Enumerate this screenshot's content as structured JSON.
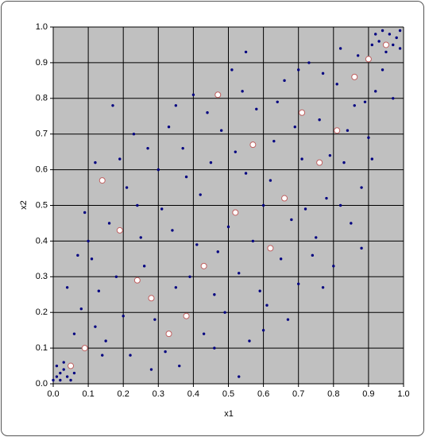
{
  "chart_data": {
    "type": "scatter",
    "xlabel": "x1",
    "ylabel": "x2",
    "xlim": [
      0,
      1
    ],
    "ylim": [
      0,
      1
    ],
    "xticks": [
      {
        "value": 0,
        "label": "0.0"
      },
      {
        "value": 0.1,
        "label": "0.1"
      },
      {
        "value": 0.2,
        "label": "0.2"
      },
      {
        "value": 0.3,
        "label": "0.3"
      },
      {
        "value": 0.4,
        "label": "0.4"
      },
      {
        "value": 0.5,
        "label": "0.5"
      },
      {
        "value": 0.6,
        "label": "0.6"
      },
      {
        "value": 0.7,
        "label": "0.7"
      },
      {
        "value": 0.8,
        "label": "0.8"
      },
      {
        "value": 0.9,
        "label": "0.9"
      },
      {
        "value": 1,
        "label": "1.0"
      }
    ],
    "yticks": [
      {
        "value": 0,
        "label": "0.0"
      },
      {
        "value": 0.1,
        "label": "0.1"
      },
      {
        "value": 0.2,
        "label": "0.2"
      },
      {
        "value": 0.3,
        "label": "0.3"
      },
      {
        "value": 0.4,
        "label": "0.4"
      },
      {
        "value": 0.5,
        "label": "0.5"
      },
      {
        "value": 0.6,
        "label": "0.6"
      },
      {
        "value": 0.7,
        "label": "0.7"
      },
      {
        "value": 0.8,
        "label": "0.8"
      },
      {
        "value": 0.9,
        "label": "0.9"
      },
      {
        "value": 1,
        "label": "1.0"
      }
    ],
    "grid": true,
    "plot_background": "#c0c0c0",
    "series": [
      {
        "color": "#000080",
        "marker": "dot",
        "x": [
          0.01,
          0.02,
          0.03,
          0.01,
          0.04,
          0.02,
          0.05,
          0.03,
          0.06,
          0.0,
          0.96,
          0.98,
          0.93,
          0.99,
          0.95,
          0.97,
          0.92,
          0.99,
          0.94,
          0.91,
          0.08,
          0.11,
          0.12,
          0.09,
          0.15,
          0.17,
          0.18,
          0.21,
          0.22,
          0.25,
          0.27,
          0.29,
          0.31,
          0.33,
          0.35,
          0.36,
          0.38,
          0.4,
          0.41,
          0.43,
          0.45,
          0.46,
          0.48,
          0.5,
          0.51,
          0.53,
          0.55,
          0.56,
          0.58,
          0.6,
          0.61,
          0.63,
          0.65,
          0.66,
          0.68,
          0.7,
          0.71,
          0.73,
          0.75,
          0.76,
          0.78,
          0.8,
          0.81,
          0.83,
          0.85,
          0.86,
          0.88,
          0.9,
          0.92,
          0.94,
          0.06,
          0.13,
          0.16,
          0.2,
          0.23,
          0.26,
          0.3,
          0.32,
          0.34,
          0.37,
          0.39,
          0.42,
          0.44,
          0.47,
          0.49,
          0.52,
          0.54,
          0.57,
          0.59,
          0.62,
          0.64,
          0.67,
          0.69,
          0.72,
          0.74,
          0.77,
          0.79,
          0.82,
          0.84,
          0.87,
          0.89,
          0.91,
          0.1,
          0.14,
          0.19,
          0.24,
          0.28,
          0.35,
          0.46,
          0.55,
          0.6,
          0.7,
          0.77,
          0.82,
          0.88,
          0.04,
          0.07,
          0.12,
          0.53,
          0.97
        ],
        "values": [
          0.02,
          0.01,
          0.04,
          0.05,
          0.02,
          0.03,
          0.01,
          0.06,
          0.03,
          0.01,
          0.98,
          0.97,
          0.96,
          0.99,
          0.93,
          0.95,
          0.98,
          0.94,
          0.99,
          0.95,
          0.21,
          0.35,
          0.62,
          0.48,
          0.12,
          0.78,
          0.3,
          0.55,
          0.08,
          0.41,
          0.66,
          0.18,
          0.49,
          0.72,
          0.27,
          0.05,
          0.58,
          0.81,
          0.39,
          0.14,
          0.62,
          0.25,
          0.71,
          0.44,
          0.88,
          0.31,
          0.59,
          0.12,
          0.77,
          0.5,
          0.22,
          0.68,
          0.35,
          0.85,
          0.46,
          0.28,
          0.63,
          0.9,
          0.41,
          0.74,
          0.52,
          0.33,
          0.84,
          0.62,
          0.45,
          0.78,
          0.55,
          0.69,
          0.82,
          0.88,
          0.14,
          0.26,
          0.45,
          0.19,
          0.7,
          0.33,
          0.6,
          0.09,
          0.43,
          0.66,
          0.3,
          0.53,
          0.76,
          0.37,
          0.2,
          0.65,
          0.82,
          0.4,
          0.26,
          0.57,
          0.79,
          0.18,
          0.72,
          0.49,
          0.36,
          0.87,
          0.64,
          0.5,
          0.71,
          0.92,
          0.79,
          0.63,
          0.4,
          0.08,
          0.63,
          0.5,
          0.04,
          0.78,
          0.1,
          0.93,
          0.15,
          0.88,
          0.27,
          0.94,
          0.38,
          0.27,
          0.36,
          0.16,
          0.02,
          0.8
        ]
      },
      {
        "color": "#ffffff",
        "edgecolor": "#c06060",
        "marker": "circle",
        "x": [
          0.05,
          0.09,
          0.14,
          0.19,
          0.24,
          0.28,
          0.33,
          0.38,
          0.43,
          0.47,
          0.52,
          0.57,
          0.62,
          0.66,
          0.71,
          0.76,
          0.81,
          0.86,
          0.9,
          0.95
        ],
        "values": [
          0.05,
          0.1,
          0.57,
          0.43,
          0.29,
          0.24,
          0.14,
          0.19,
          0.33,
          0.81,
          0.48,
          0.67,
          0.38,
          0.52,
          0.76,
          0.62,
          0.71,
          0.86,
          0.91,
          0.95
        ]
      }
    ]
  }
}
